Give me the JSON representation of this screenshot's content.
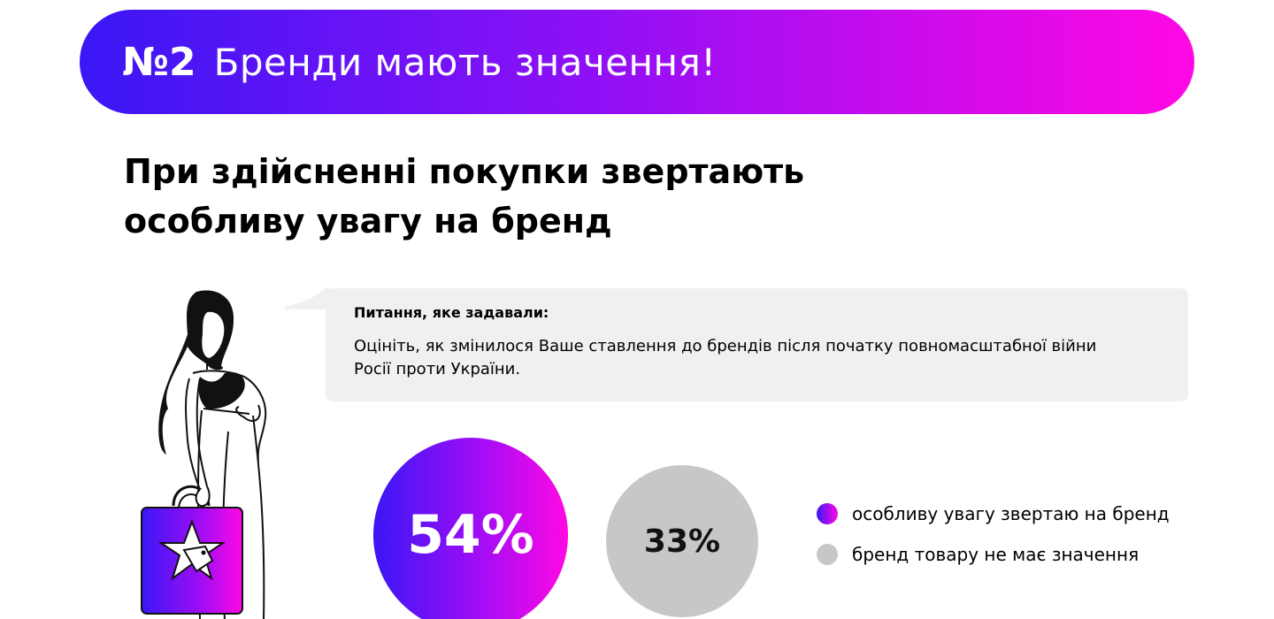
{
  "banner": {
    "number": "№2",
    "title": "Бренди мають значення!"
  },
  "headline": {
    "line1": "При здійсненні покупки звертають",
    "line2": "особливу увагу на бренд"
  },
  "question": {
    "label": "Питання, яке задавали:",
    "text": "Оцініть, як змінилося Ваше ставлення до брендів після початку повномасштабної війни Росії проти України."
  },
  "chart_data": {
    "type": "pie",
    "categories": [
      "особливу увагу звертаю на бренд",
      "бренд товару не має значення"
    ],
    "values": [
      54,
      33
    ],
    "labels": [
      "54%",
      "33%"
    ],
    "legend_position": "right",
    "colors": [
      "#8d10f6",
      "#c7c7c7"
    ]
  },
  "colors": {
    "gradient_start": "#3a17f5",
    "gradient_mid": "#8d10f6",
    "gradient_end": "#ff08e3",
    "muted": "#c7c7c7",
    "panel": "#f0f0f0"
  },
  "icons": {
    "figure": "woman-with-shopping-bag-illustration",
    "bag_emblem": "star-with-price-tag-icon"
  }
}
